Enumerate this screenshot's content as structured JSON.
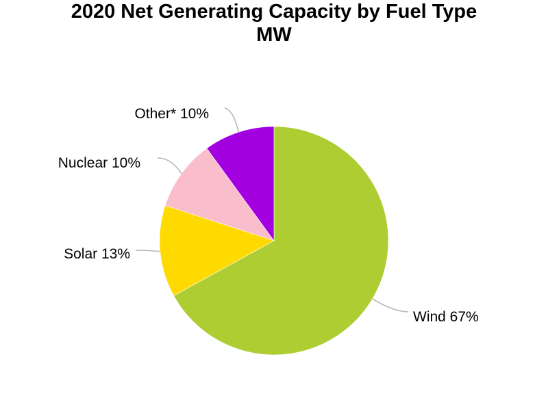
{
  "chart_data": {
    "type": "pie",
    "title": "2020 Net Generating Capacity by Fuel Type",
    "subtitle": "MW",
    "categories": [
      "Wind",
      "Solar",
      "Nuclear",
      "Other*"
    ],
    "values": [
      67,
      13,
      10,
      10
    ],
    "colors": [
      "#AECD33",
      "#FFDA00",
      "#F9BDCB",
      "#A300E0"
    ],
    "labels": [
      "Wind 67%",
      "Solar 13%",
      "Nuclear 10%",
      "Other* 10%"
    ],
    "start_angle": "12 o'clock",
    "direction": "clockwise",
    "legend": "none"
  }
}
